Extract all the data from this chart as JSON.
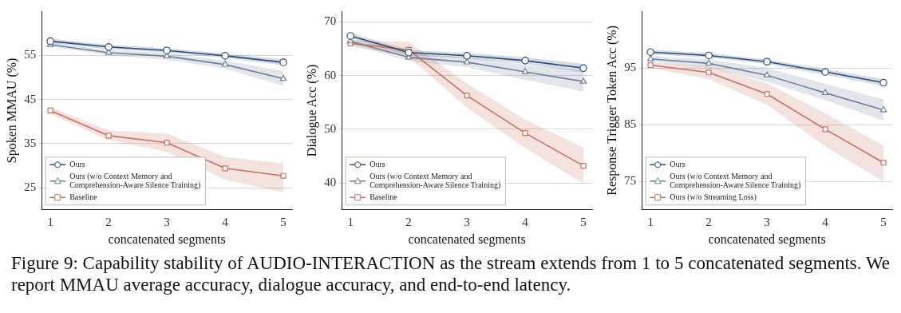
{
  "chart_data": [
    {
      "type": "line",
      "xlabel": "concatenated segments",
      "ylabel": "Spoken MMAU (%)",
      "x": [
        1,
        2,
        3,
        4,
        5
      ],
      "xlim": [
        0.85,
        5.15
      ],
      "xticks": [
        1,
        2,
        3,
        4,
        5
      ],
      "ylim": [
        20,
        65
      ],
      "yticks": [
        25,
        35,
        45,
        55
      ],
      "grid": "y",
      "legend": "bottom left",
      "line_style": "solid",
      "series": [
        {
          "name": "Ours",
          "color": "#2c4a78",
          "marker": "circle",
          "values": [
            58.2,
            56.9,
            56.1,
            54.9,
            53.4
          ],
          "lower": [
            57.7,
            56.4,
            55.6,
            54.4,
            52.7
          ],
          "upper": [
            58.7,
            57.4,
            56.6,
            55.4,
            54.1
          ]
        },
        {
          "name": "Ours (w/o Context Memory and Comprehension-Aware Silence Training)",
          "color": "#6e819a",
          "marker": "triangle",
          "values": [
            57.4,
            55.6,
            54.8,
            52.9,
            49.7
          ],
          "lower": [
            57.0,
            55.0,
            54.0,
            52.0,
            48.1
          ],
          "upper": [
            57.8,
            56.2,
            55.5,
            53.8,
            51.5
          ]
        },
        {
          "name": "Baseline",
          "color": "#c97060",
          "marker": "square",
          "values": [
            42.5,
            36.8,
            35.2,
            29.4,
            27.7
          ],
          "lower": [
            41.7,
            35.8,
            33.1,
            26.8,
            24.0
          ],
          "upper": [
            43.3,
            38.0,
            37.3,
            32.0,
            30.5
          ]
        }
      ],
      "annotations": [
        "Figure 9: Capability stability of AUDIO-INTERACTION as the stream extends from 1 to 5 concatenated segments. We report MMAU average accuracy, dialogue accuracy, and end-to-end latency."
      ]
    },
    {
      "type": "line",
      "xlabel": "concatenated segments",
      "ylabel": "Dialogue Acc (%)",
      "x": [
        1,
        2,
        3,
        4,
        5
      ],
      "xlim": [
        0.85,
        5.15
      ],
      "xticks": [
        1,
        2,
        3,
        4,
        5
      ],
      "ylim": [
        35,
        72
      ],
      "yticks": [
        40,
        50,
        60,
        70
      ],
      "grid": "y",
      "legend": "bottom left",
      "line_style": "solid",
      "series": [
        {
          "name": "Ours",
          "color": "#2c4a78",
          "marker": "circle",
          "values": [
            67.4,
            64.3,
            63.7,
            62.8,
            61.4
          ],
          "lower": [
            66.9,
            63.8,
            63.2,
            62.2,
            60.6
          ],
          "upper": [
            67.9,
            64.8,
            64.2,
            63.4,
            62.2
          ]
        },
        {
          "name": "Ours (w/o Context Memory and Comprehension-Aware Silence Training)",
          "color": "#6e819a",
          "marker": "triangle",
          "values": [
            66.4,
            63.4,
            62.5,
            60.7,
            58.9
          ],
          "lower": [
            65.9,
            62.7,
            61.6,
            59.2,
            57.0
          ],
          "upper": [
            66.9,
            64.1,
            63.4,
            62.0,
            61.0
          ]
        },
        {
          "name": "Baseline",
          "color": "#c97060",
          "marker": "square",
          "values": [
            66.0,
            64.8,
            56.3,
            49.3,
            43.2
          ],
          "lower": [
            65.5,
            63.5,
            54.0,
            46.5,
            39.9
          ],
          "upper": [
            66.5,
            66.3,
            58.5,
            51.8,
            46.6
          ]
        }
      ]
    },
    {
      "type": "line",
      "xlabel": "concatenated segments",
      "ylabel": "Response Trigger Token Acc (%)",
      "x": [
        1,
        2,
        3,
        4,
        5
      ],
      "xlim": [
        0.85,
        5.15
      ],
      "xticks": [
        1,
        2,
        3,
        4,
        5
      ],
      "ylim": [
        70,
        105
      ],
      "yticks": [
        75,
        85,
        95
      ],
      "grid": "y",
      "legend": "bottom left",
      "line_style": "solid",
      "series": [
        {
          "name": "Ours",
          "color": "#2c4a78",
          "marker": "circle",
          "values": [
            97.8,
            97.2,
            96.1,
            94.3,
            92.4
          ],
          "lower": [
            97.4,
            96.8,
            95.7,
            93.8,
            91.8
          ],
          "upper": [
            98.2,
            97.6,
            96.5,
            94.8,
            93.0
          ]
        },
        {
          "name": "Ours (w/o Context Memory and Comprehension-Aware Silence Training)",
          "color": "#6e819a",
          "marker": "triangle",
          "values": [
            96.6,
            95.8,
            93.7,
            90.6,
            87.6
          ],
          "lower": [
            96.1,
            95.0,
            92.6,
            89.3,
            85.7
          ],
          "upper": [
            97.1,
            96.5,
            95.0,
            92.2,
            89.5
          ]
        },
        {
          "name": "Ours (w/o Streaming Loss)",
          "color": "#c97060",
          "marker": "square",
          "values": [
            95.5,
            94.2,
            90.4,
            84.2,
            78.3
          ],
          "lower": [
            95.0,
            93.0,
            88.5,
            81.2,
            75.0
          ],
          "upper": [
            96.0,
            95.3,
            92.3,
            87.0,
            81.3
          ]
        }
      ]
    }
  ]
}
